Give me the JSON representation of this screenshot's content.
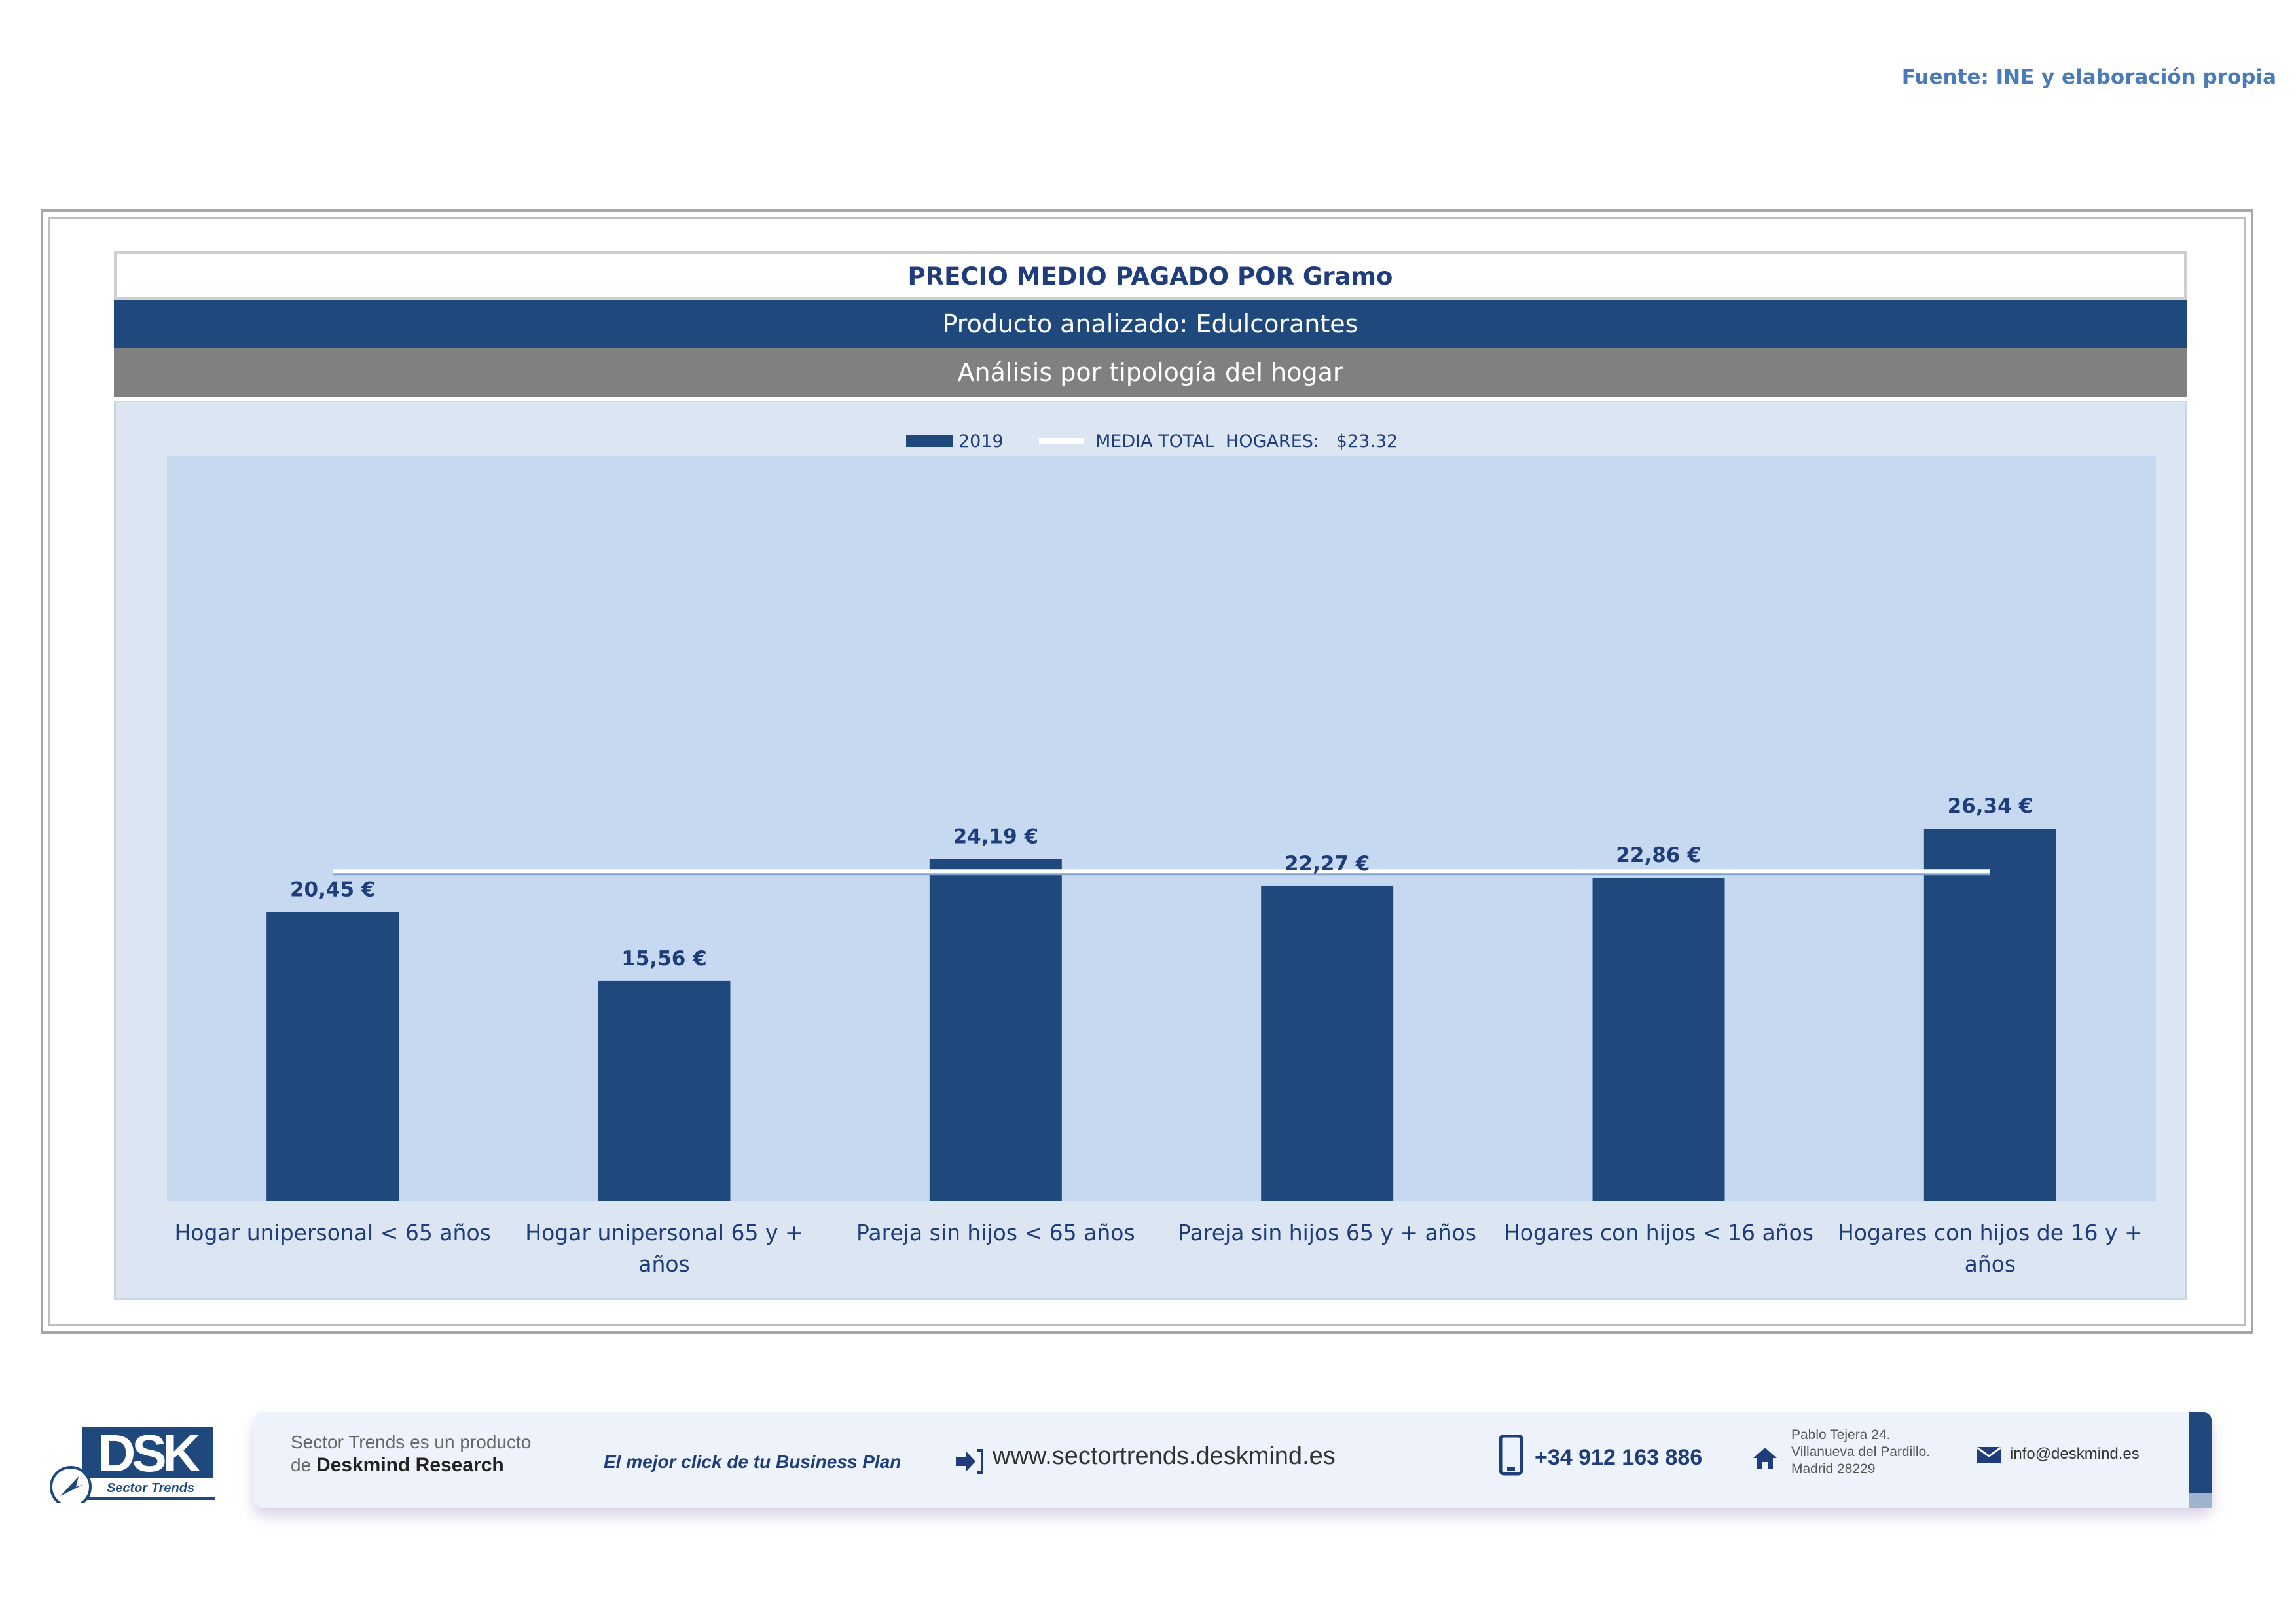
{
  "source": "Fuente: INE y elaboración propia",
  "header": {
    "title": "PRECIO MEDIO PAGADO POR Gramo",
    "product": "Producto analizado: Edulcorantes",
    "analysis": "Análisis por tipología del hogar"
  },
  "legend": {
    "series_label": "2019",
    "average_label": "MEDIA TOTAL  HOGARES:   $23.32"
  },
  "colors": {
    "bar": "#1f497d",
    "plot_bg": "#c6d9f1",
    "chart_bg": "#dce6f2",
    "average_line": "#ffffff"
  },
  "chart_data": {
    "type": "bar",
    "title": "PRECIO MEDIO PAGADO POR Gramo",
    "categories": [
      [
        "Hogar unipersonal < 65 años"
      ],
      [
        "Hogar unipersonal  65 y +",
        "años"
      ],
      [
        "Pareja sin hijos < 65 años"
      ],
      [
        "Pareja sin hijos 65 y + años"
      ],
      [
        "Hogares con hijos < 16 años"
      ],
      [
        "Hogares con hijos de 16 y +",
        "años"
      ]
    ],
    "series": [
      {
        "name": "2019",
        "values": [
          20.45,
          15.56,
          24.19,
          22.27,
          22.86,
          26.34
        ],
        "labels": [
          "20,45 €",
          "15,56 €",
          "24,19 €",
          "22,27 €",
          "22,86 €",
          "26,34 €"
        ]
      }
    ],
    "average": {
      "name": "MEDIA TOTAL  HOGARES",
      "value": 23.32
    },
    "ylim": [
      0,
      30
    ],
    "grid": false,
    "legend_position": "top"
  },
  "footer": {
    "logo_text": "DSK",
    "logo_sub": "Sector Trends",
    "product_line1": "Sector Trends es un producto",
    "product_line2_prefix": "de ",
    "product_line2_brand": "Deskmind Research",
    "slogan": "El mejor click de tu Business Plan",
    "website": "www.sectortrends.deskmind.es",
    "phone": "+34 912 163 886",
    "address_line1": "Pablo Tejera 24.",
    "address_line2": "Villanueva del Pardillo.",
    "address_line3": "Madrid 28229",
    "email": "info@deskmind.es",
    "icons": [
      "arrow-in-icon",
      "phone-icon",
      "home-icon",
      "mail-icon"
    ]
  }
}
